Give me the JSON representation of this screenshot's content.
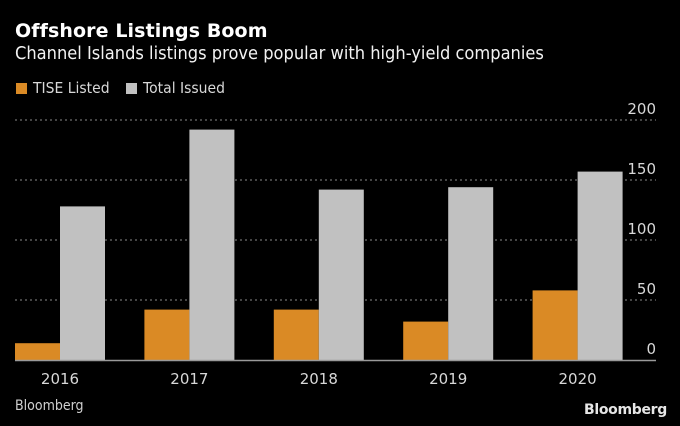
{
  "header": {
    "title": "Offshore Listings Boom",
    "subtitle": "Channel Islands listings prove popular with high-yield companies"
  },
  "legend": [
    {
      "label": "TISE Listed",
      "color": "#DA8A25"
    },
    {
      "label": "Total Issued",
      "color": "#C1C1C1"
    }
  ],
  "footer": {
    "source": "Bloomberg",
    "logo": "Bloomberg"
  },
  "chart_data": {
    "type": "bar",
    "title": "Offshore Listings Boom",
    "subtitle": "Channel Islands listings prove popular with high-yield companies",
    "categories": [
      "2016",
      "2017",
      "2018",
      "2019",
      "2020"
    ],
    "series": [
      {
        "name": "TISE Listed",
        "color": "#DA8A25",
        "values": [
          14,
          42,
          42,
          32,
          58
        ]
      },
      {
        "name": "Total Issued",
        "color": "#C1C1C1",
        "values": [
          128,
          192,
          142,
          144,
          157
        ]
      }
    ],
    "xlabel": "",
    "ylabel": "",
    "ylim": [
      0,
      200
    ],
    "yticks": [
      0,
      50,
      100,
      150,
      200
    ],
    "ytick_labels": [
      "0",
      "50",
      "100",
      "150",
      "200"
    ],
    "y_axis_side": "right",
    "grid": true,
    "legend_position": "top-left"
  }
}
